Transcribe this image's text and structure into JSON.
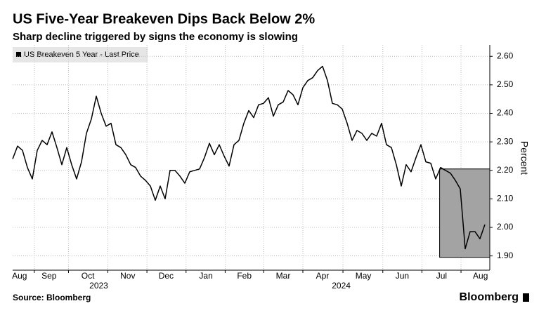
{
  "chart_data": {
    "type": "line",
    "title": "US Five-Year Breakeven Dips Back Below 2%",
    "subtitle": "Sharp decline triggered by signs the economy is slowing",
    "y_label": "Percent",
    "source": "Source: Bloomberg",
    "brand": "Bloomberg",
    "series": [
      {
        "name": "US Breakeven 5 Year - Last Price",
        "color": "#000000",
        "values": [
          2.24,
          2.285,
          2.27,
          2.21,
          2.17,
          2.27,
          2.305,
          2.29,
          2.335,
          2.28,
          2.22,
          2.28,
          2.22,
          2.17,
          2.23,
          2.33,
          2.38,
          2.46,
          2.4,
          2.355,
          2.365,
          2.29,
          2.28,
          2.255,
          2.22,
          2.21,
          2.18,
          2.165,
          2.145,
          2.095,
          2.145,
          2.1,
          2.2,
          2.2,
          2.18,
          2.155,
          2.195,
          2.2,
          2.205,
          2.245,
          2.295,
          2.255,
          2.29,
          2.25,
          2.215,
          2.29,
          2.305,
          2.365,
          2.41,
          2.385,
          2.43,
          2.435,
          2.455,
          2.39,
          2.43,
          2.44,
          2.48,
          2.465,
          2.43,
          2.49,
          2.515,
          2.525,
          2.55,
          2.565,
          2.515,
          2.435,
          2.43,
          2.415,
          2.365,
          2.305,
          2.34,
          2.33,
          2.305,
          2.33,
          2.32,
          2.365,
          2.29,
          2.28,
          2.22,
          2.145,
          2.22,
          2.195,
          2.245,
          2.29,
          2.23,
          2.225,
          2.17,
          2.21,
          2.2,
          2.19,
          2.165,
          2.135,
          1.925,
          1.985,
          1.985,
          1.96,
          2.01
        ]
      }
    ],
    "xlim": [
      0,
      97
    ],
    "xticks": [
      {
        "value": 1.4,
        "label": "Aug"
      },
      {
        "value": 7.4,
        "label": "Sep"
      },
      {
        "value": 15.3,
        "label": "Oct"
      },
      {
        "value": 23.4,
        "label": "Nov"
      },
      {
        "value": 31.2,
        "label": "Dec"
      },
      {
        "value": 39.3,
        "label": "Jan"
      },
      {
        "value": 47.1,
        "label": "Feb"
      },
      {
        "value": 55.0,
        "label": "Mar"
      },
      {
        "value": 63.0,
        "label": "Apr"
      },
      {
        "value": 71.3,
        "label": "May"
      },
      {
        "value": 79.2,
        "label": "Jun"
      },
      {
        "value": 87.2,
        "label": "Jul"
      },
      {
        "value": 95.1,
        "label": "Aug"
      }
    ],
    "year_labels": [
      {
        "value": 17.5,
        "label": "2023"
      },
      {
        "value": 66.8,
        "label": "2024"
      }
    ],
    "ylim": [
      1.85,
      2.64
    ],
    "yticks": [
      {
        "value": 1.9,
        "label": "1.90"
      },
      {
        "value": 2.0,
        "label": "2.00"
      },
      {
        "value": 2.1,
        "label": "2.10"
      },
      {
        "value": 2.2,
        "label": "2.20"
      },
      {
        "value": 2.3,
        "label": "2.30"
      },
      {
        "value": 2.4,
        "label": "2.40"
      },
      {
        "value": 2.5,
        "label": "2.50"
      },
      {
        "value": 2.6,
        "label": "2.60"
      }
    ],
    "highlight": {
      "x": [
        86.8,
        97
      ],
      "y": [
        1.895,
        2.205
      ]
    },
    "grid": true
  }
}
